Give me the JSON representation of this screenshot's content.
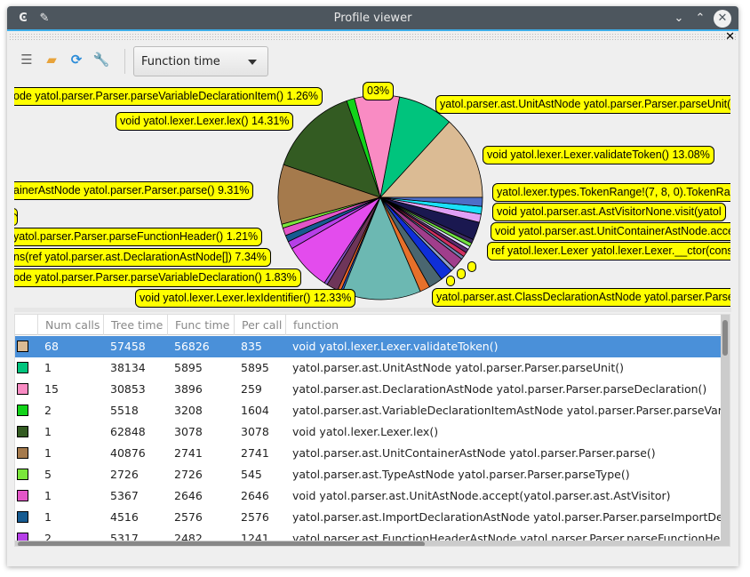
{
  "window": {
    "title": "Profile viewer",
    "app_icon": "kde-app-icon",
    "pin_icon": "pin-icon",
    "minimize_icon": "chevron-down-icon",
    "maximize_icon": "chevron-up-icon",
    "close_icon": "close-icon",
    "dock_close": "✕"
  },
  "toolbar": {
    "buttons": [
      {
        "name": "new-document-icon"
      },
      {
        "name": "open-folder-icon"
      },
      {
        "name": "refresh-icon"
      },
      {
        "name": "wrench-icon"
      }
    ],
    "combo_value": "Function time"
  },
  "chart_data": {
    "type": "pie",
    "unit": "percent",
    "slices": [
      {
        "label": "void yatol.lexer.Lexer.validateToken()",
        "value": 13.08,
        "color": "#dbbb94"
      },
      {
        "label": "yatol.parser.ast.UnitAstNode yatol.parser.Parser.parseUnit()",
        "value": 8.68,
        "color": "#00c47d"
      },
      {
        "label": "yatol.parser.ast.DeclarationAstNode yatol.parser.Parser.parseDeclaration()",
        "value": 7.02,
        "color": "#f98bc3"
      },
      {
        "label": "yatol.parser.ast.VariableDeclarationItemAstNode yatol.parser.Parser.parseVariableDeclarationItem()",
        "value": 1.26,
        "color": "#12d31a"
      },
      {
        "label": "void yatol.lexer.Lexer.lex()",
        "value": 14.31,
        "color": "#335b22"
      },
      {
        "label": "yatol.parser.ast.UnitContainerAstNode yatol.parser.Parser.parse()",
        "value": 9.31,
        "color": "#a57a4c"
      },
      {
        "label": "yatol.parser.ast.TypeAstNode yatol.parser.Parser.parseType()",
        "value": 0.62,
        "color": "#7ae63b"
      },
      {
        "label": "void yatol.parser.ast.UnitAstNode.accept(yatol.parser.ast.AstVisitor)",
        "value": 1.22,
        "color": "#e356c8"
      },
      {
        "label": "yatol.parser.ast.ImportDeclarationAstNode yatol.parser.Parser.parseImportDeclaration()",
        "value": 1.03,
        "color": "#165b91"
      },
      {
        "label": "yatol.parser.ast.FunctionHeaderAstNode yatol.parser.Parser.parseFunctionHeader()",
        "value": 1.21,
        "color": "#b63fe8"
      },
      {
        "label": "",
        "value": 7.34,
        "color": "#e34ced"
      },
      {
        "label": "",
        "value": 0.5,
        "color": "#8855cc"
      },
      {
        "label": "",
        "value": 1.83,
        "color": "#6e3559"
      },
      {
        "label": "",
        "value": 0.5,
        "color": "#e8652a"
      },
      {
        "label": "",
        "value": 0.3,
        "color": "#2a64d8"
      },
      {
        "label": "void yatol.lexer.Lexer.lexIdentifier()",
        "value": 12.33,
        "color": "#6cb8b2"
      },
      {
        "label": "",
        "value": 1.6,
        "color": "#e6702a"
      },
      {
        "label": "",
        "value": 2.2,
        "color": "#4a6670"
      },
      {
        "label": "",
        "value": 2.0,
        "color": "#0f2fd8"
      },
      {
        "label": "",
        "value": 0.6,
        "color": "#8ea0c8"
      },
      {
        "label": "",
        "value": 1.8,
        "color": "#a03e8c"
      },
      {
        "label": "",
        "value": 0.5,
        "color": "#7080b0"
      },
      {
        "label": "",
        "value": 0.7,
        "color": "#d03060"
      },
      {
        "label": "",
        "value": 0.6,
        "color": "#5a2a70"
      },
      {
        "label": "",
        "value": 0.5,
        "color": "#e0e0ff"
      },
      {
        "label": "",
        "value": 0.6,
        "color": "#70e040"
      },
      {
        "label": "",
        "value": 0.6,
        "color": "#3a2a60"
      },
      {
        "label": "",
        "value": 2.8,
        "color": "#1a1850"
      },
      {
        "label": "",
        "value": 1.3,
        "color": "#e0a0f5"
      },
      {
        "label": "",
        "value": 1.2,
        "color": "#1ae0f8"
      },
      {
        "label": "",
        "value": 1.4,
        "color": "#4e6ec8"
      }
    ],
    "labels": [
      {
        "text": "ode yatol.parser.Parser.parseVariableDeclarationItem() 1.26%"
      },
      {
        "text": "03%"
      },
      {
        "text": "void yatol.lexer.Lexer.lex() 14.31%"
      },
      {
        "text": "yatol.parser.ast.UnitAstNode yatol.parser.Parser.parseUnit() 8.68%"
      },
      {
        "text": "void yatol.lexer.Lexer.validateToken() 13.08%"
      },
      {
        "text": "ainerAstNode yatol.parser.Parser.parse() 9.31%"
      },
      {
        "text": "yatol.lexer.types.TokenRange!(7, 8, 0).TokenRange"
      },
      {
        "text": "void yatol.parser.ast.AstVisitorNone.visit(yatol"
      },
      {
        "text": "void yatol.parser.ast.UnitContainerAstNode.accept"
      },
      {
        "text": "ref yatol.lexer.Lexer yatol.lexer.Lexer.__ctor(const"
      },
      {
        "text": "yatol.parser.Parser.parseFunctionHeader() 1.21%"
      },
      {
        "text": "ns(ref yatol.parser.ast.DeclarationAstNode[]) 7.34%"
      },
      {
        "text": "ode yatol.parser.Parser.parseVariableDeclaration() 1.83%"
      },
      {
        "text": "void yatol.lexer.Lexer.lexIdentifier() 12.33%"
      },
      {
        "text": "yatol.parser.ast.ClassDeclarationAstNode yatol.parser.Parser"
      }
    ]
  },
  "table": {
    "columns": [
      "",
      "Num calls",
      "Tree time",
      "Func time",
      "Per call",
      "function"
    ],
    "rows": [
      {
        "color": "#dbbb94",
        "calls": "68",
        "tree": "57458",
        "func": "56826",
        "per": "835",
        "fn": "void yatol.lexer.Lexer.validateToken()",
        "selected": true
      },
      {
        "color": "#00c47d",
        "calls": "1",
        "tree": "38134",
        "func": "5895",
        "per": "5895",
        "fn": "yatol.parser.ast.UnitAstNode yatol.parser.Parser.parseUnit()"
      },
      {
        "color": "#f98bc3",
        "calls": "15",
        "tree": "30853",
        "func": "3896",
        "per": "259",
        "fn": "yatol.parser.ast.DeclarationAstNode yatol.parser.Parser.parseDeclaration()"
      },
      {
        "color": "#12d31a",
        "calls": "2",
        "tree": "5518",
        "func": "3208",
        "per": "1604",
        "fn": "yatol.parser.ast.VariableDeclarationItemAstNode yatol.parser.Parser.parseVariable"
      },
      {
        "color": "#335b22",
        "calls": "1",
        "tree": "62848",
        "func": "3078",
        "per": "3078",
        "fn": "void yatol.lexer.Lexer.lex()"
      },
      {
        "color": "#a57a4c",
        "calls": "1",
        "tree": "40876",
        "func": "2741",
        "per": "2741",
        "fn": "yatol.parser.ast.UnitContainerAstNode yatol.parser.Parser.parse()"
      },
      {
        "color": "#7ae63b",
        "calls": "5",
        "tree": "2726",
        "func": "2726",
        "per": "545",
        "fn": "yatol.parser.ast.TypeAstNode yatol.parser.Parser.parseType()"
      },
      {
        "color": "#e356c8",
        "calls": "1",
        "tree": "5367",
        "func": "2646",
        "per": "2646",
        "fn": "void yatol.parser.ast.UnitAstNode.accept(yatol.parser.ast.AstVisitor)"
      },
      {
        "color": "#165b91",
        "calls": "1",
        "tree": "4516",
        "func": "2576",
        "per": "2576",
        "fn": "yatol.parser.ast.ImportDeclarationAstNode yatol.parser.Parser.parseImportDeclara"
      },
      {
        "color": "#b63fe8",
        "calls": "2",
        "tree": "5317",
        "func": "2482",
        "per": "1241",
        "fn": "yatol.parser.ast.FunctionHeaderAstNode yatol.parser.Parser.parseFunctionHeader"
      }
    ]
  }
}
